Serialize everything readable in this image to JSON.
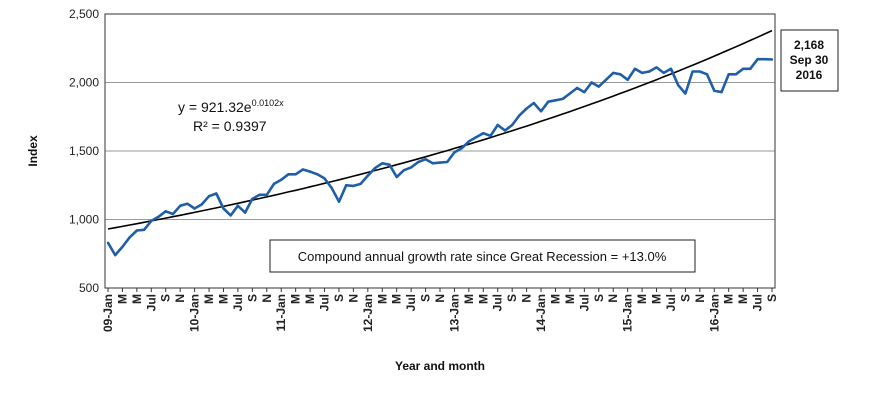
{
  "chart_data": {
    "type": "line",
    "xlabel": "Year and month",
    "ylabel": "Index",
    "ylim": [
      500,
      2500
    ],
    "yticks": [
      "500",
      "1,000",
      "1,500",
      "2,000",
      "2,500"
    ],
    "grid": "horizontal",
    "x_tick_labels": [
      "09-Jan",
      "M",
      "M",
      "Jul",
      "S",
      "N",
      "10-Jan",
      "M",
      "M",
      "Jul",
      "S",
      "N",
      "11-Jan",
      "M",
      "M",
      "Jul",
      "S",
      "N",
      "12-Jan",
      "M",
      "M",
      "Jul",
      "S",
      "N",
      "13-Jan",
      "M",
      "M",
      "Jul",
      "S",
      "N",
      "14-Jan",
      "M",
      "M",
      "Jul",
      "S",
      "N",
      "15-Jan",
      "M",
      "M",
      "Jul",
      "S",
      "N",
      "16-Jan",
      "M",
      "M",
      "Jul",
      "S"
    ],
    "series": [
      {
        "color": "#1f5fa8",
        "values": [
          830,
          740,
          800,
          870,
          920,
          925,
          990,
          1020,
          1060,
          1040,
          1100,
          1115,
          1080,
          1110,
          1170,
          1190,
          1080,
          1030,
          1100,
          1050,
          1150,
          1180,
          1180,
          1260,
          1290,
          1330,
          1330,
          1365,
          1350,
          1330,
          1300,
          1230,
          1130,
          1250,
          1245,
          1260,
          1320,
          1375,
          1410,
          1400,
          1310,
          1360,
          1380,
          1420,
          1440,
          1410,
          1415,
          1420,
          1490,
          1520,
          1570,
          1600,
          1630,
          1610,
          1690,
          1650,
          1690,
          1760,
          1810,
          1850,
          1790,
          1860,
          1870,
          1880,
          1920,
          1960,
          1930,
          2000,
          1970,
          2020,
          2070,
          2060,
          2020,
          2100,
          2070,
          2080,
          2110,
          2070,
          2100,
          1980,
          1920,
          2080,
          2080,
          2060,
          1940,
          1930,
          2060,
          2060,
          2100,
          2100,
          2170,
          2170,
          2168
        ]
      }
    ],
    "trendline": {
      "a": 921.32,
      "b": 0.0102,
      "color": "#000000"
    },
    "equation": {
      "prefix": "y = 921.32e",
      "exponent": "0.0102x"
    },
    "r_squared": "R² = 0.9397",
    "annotation_box": "Compound annual growth rate since Great Recession = +13.0%",
    "callout": {
      "line1": "2,168",
      "line2": "Sep 30",
      "line3": "2016"
    }
  }
}
